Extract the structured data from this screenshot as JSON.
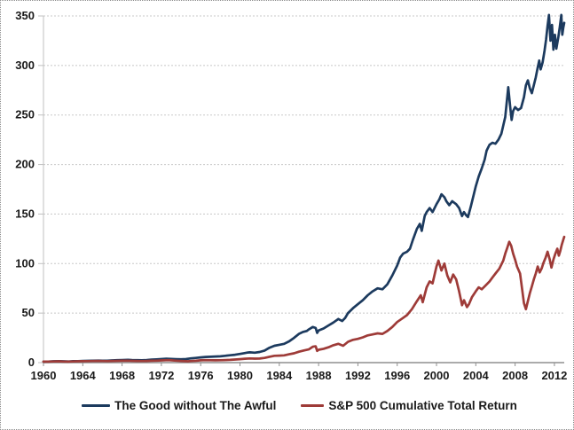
{
  "chart_data": {
    "type": "line",
    "title": "",
    "grid": true,
    "legend_position": "bottom",
    "x_axis": {
      "min": 1960,
      "max": 2013,
      "tick_labels": [
        "1960",
        "1964",
        "1968",
        "1972",
        "1976",
        "1980",
        "1984",
        "1988",
        "1992",
        "1996",
        "2000",
        "2004",
        "2008",
        "2012"
      ]
    },
    "y_axis": {
      "min": 0,
      "max": 350,
      "tick_labels": [
        "0",
        "50",
        "100",
        "150",
        "200",
        "250",
        "300",
        "350"
      ]
    },
    "colors": {
      "grid": "#c8c8c8",
      "axis": "#8f8f8f",
      "y_axis_line": "#c0c0c0",
      "tick_text": "#1a1a1a"
    },
    "series": [
      {
        "name": "The Good without The Awful",
        "color": "#1c3a5e",
        "points": [
          [
            1960,
            1
          ],
          [
            1960.5,
            1.1
          ],
          [
            1961,
            1.3
          ],
          [
            1961.6,
            1.4
          ],
          [
            1962,
            1.3
          ],
          [
            1962.6,
            1.2
          ],
          [
            1963,
            1.4
          ],
          [
            1963.5,
            1.5
          ],
          [
            1964,
            1.7
          ],
          [
            1964.5,
            1.8
          ],
          [
            1965,
            2
          ],
          [
            1965.6,
            2.1
          ],
          [
            1966,
            2
          ],
          [
            1966.5,
            1.9
          ],
          [
            1967,
            2.2
          ],
          [
            1967.5,
            2.5
          ],
          [
            1968,
            2.6
          ],
          [
            1968.6,
            2.8
          ],
          [
            1969,
            2.6
          ],
          [
            1969.6,
            2.5
          ],
          [
            1970,
            2.4
          ],
          [
            1970.5,
            2.6
          ],
          [
            1971,
            3
          ],
          [
            1971.5,
            3.3
          ],
          [
            1972,
            3.6
          ],
          [
            1972.5,
            3.9
          ],
          [
            1973,
            3.7
          ],
          [
            1973.5,
            3.5
          ],
          [
            1974,
            3.4
          ],
          [
            1974.5,
            3.6
          ],
          [
            1975,
            4.3
          ],
          [
            1975.5,
            4.7
          ],
          [
            1976,
            5.3
          ],
          [
            1976.5,
            5.7
          ],
          [
            1977,
            5.9
          ],
          [
            1977.5,
            6.2
          ],
          [
            1978,
            6.4
          ],
          [
            1978.5,
            6.9
          ],
          [
            1979,
            7.4
          ],
          [
            1979.5,
            8
          ],
          [
            1980,
            8.8
          ],
          [
            1980.4,
            9.5
          ],
          [
            1980.8,
            10.2
          ],
          [
            1981,
            10.4
          ],
          [
            1981.5,
            10
          ],
          [
            1982,
            10.7
          ],
          [
            1982.5,
            12.2
          ],
          [
            1983,
            15
          ],
          [
            1983.5,
            17
          ],
          [
            1984,
            18
          ],
          [
            1984.5,
            19
          ],
          [
            1985,
            21.5
          ],
          [
            1985.5,
            25
          ],
          [
            1986,
            29
          ],
          [
            1986.4,
            31
          ],
          [
            1986.8,
            32
          ],
          [
            1987,
            33.5
          ],
          [
            1987.4,
            36
          ],
          [
            1987.7,
            35
          ],
          [
            1987.85,
            30
          ],
          [
            1988,
            32.5
          ],
          [
            1988.5,
            34.5
          ],
          [
            1989,
            37.5
          ],
          [
            1989.5,
            40.5
          ],
          [
            1990,
            44
          ],
          [
            1990.4,
            42
          ],
          [
            1990.7,
            45
          ],
          [
            1991,
            50
          ],
          [
            1991.5,
            55
          ],
          [
            1992,
            59
          ],
          [
            1992.5,
            63
          ],
          [
            1993,
            68
          ],
          [
            1993.5,
            72
          ],
          [
            1994,
            75
          ],
          [
            1994.5,
            74
          ],
          [
            1995,
            79
          ],
          [
            1995.5,
            88
          ],
          [
            1996,
            98
          ],
          [
            1996.3,
            106
          ],
          [
            1996.6,
            110
          ],
          [
            1997,
            112
          ],
          [
            1997.3,
            115
          ],
          [
            1997.6,
            124
          ],
          [
            1998,
            135
          ],
          [
            1998.3,
            140
          ],
          [
            1998.5,
            133
          ],
          [
            1998.8,
            148
          ],
          [
            1999,
            152
          ],
          [
            1999.3,
            156
          ],
          [
            1999.6,
            152
          ],
          [
            2000,
            160
          ],
          [
            2000.3,
            165
          ],
          [
            2000.5,
            170
          ],
          [
            2000.8,
            167
          ],
          [
            2001,
            163
          ],
          [
            2001.3,
            159
          ],
          [
            2001.6,
            163
          ],
          [
            2002,
            160
          ],
          [
            2002.3,
            156
          ],
          [
            2002.6,
            148
          ],
          [
            2002.8,
            152
          ],
          [
            2003,
            149
          ],
          [
            2003.2,
            147
          ],
          [
            2003.5,
            158
          ],
          [
            2003.8,
            170
          ],
          [
            2004,
            178
          ],
          [
            2004.3,
            188
          ],
          [
            2004.6,
            196
          ],
          [
            2004.9,
            205
          ],
          [
            2005.1,
            214
          ],
          [
            2005.4,
            220
          ],
          [
            2005.7,
            222
          ],
          [
            2006,
            221
          ],
          [
            2006.3,
            225
          ],
          [
            2006.6,
            231
          ],
          [
            2007,
            248
          ],
          [
            2007.3,
            278
          ],
          [
            2007.5,
            258
          ],
          [
            2007.65,
            245
          ],
          [
            2007.8,
            254
          ],
          [
            2008,
            258
          ],
          [
            2008.3,
            255
          ],
          [
            2008.6,
            257
          ],
          [
            2008.9,
            268
          ],
          [
            2009.1,
            280
          ],
          [
            2009.3,
            285
          ],
          [
            2009.5,
            277
          ],
          [
            2009.7,
            272
          ],
          [
            2009.9,
            280
          ],
          [
            2010.1,
            288
          ],
          [
            2010.3,
            298
          ],
          [
            2010.45,
            305
          ],
          [
            2010.6,
            296
          ],
          [
            2010.8,
            303
          ],
          [
            2011,
            315
          ],
          [
            2011.15,
            326
          ],
          [
            2011.3,
            340
          ],
          [
            2011.45,
            351
          ],
          [
            2011.6,
            325
          ],
          [
            2011.75,
            341
          ],
          [
            2011.9,
            316
          ],
          [
            2012.05,
            331
          ],
          [
            2012.2,
            317
          ],
          [
            2012.4,
            329
          ],
          [
            2012.55,
            339
          ],
          [
            2012.7,
            351
          ],
          [
            2012.8,
            331
          ],
          [
            2012.9,
            338
          ],
          [
            2013,
            343
          ]
        ]
      },
      {
        "name": "S&P 500 Cumulative Total Return",
        "color": "#9e3b38",
        "points": [
          [
            1960,
            1
          ],
          [
            1960.5,
            1
          ],
          [
            1961,
            1.2
          ],
          [
            1961.6,
            1.3
          ],
          [
            1962,
            1.1
          ],
          [
            1962.5,
            1
          ],
          [
            1963,
            1.2
          ],
          [
            1963.5,
            1.3
          ],
          [
            1964,
            1.4
          ],
          [
            1964.5,
            1.5
          ],
          [
            1965,
            1.6
          ],
          [
            1965.5,
            1.7
          ],
          [
            1966,
            1.6
          ],
          [
            1966.5,
            1.5
          ],
          [
            1967,
            1.7
          ],
          [
            1967.5,
            1.8
          ],
          [
            1968,
            1.9
          ],
          [
            1968.5,
            2
          ],
          [
            1969,
            1.8
          ],
          [
            1969.5,
            1.7
          ],
          [
            1970,
            1.6
          ],
          [
            1970.5,
            1.7
          ],
          [
            1971,
            1.9
          ],
          [
            1971.5,
            2
          ],
          [
            1972,
            2.2
          ],
          [
            1972.7,
            2.5
          ],
          [
            1973,
            2.3
          ],
          [
            1973.5,
            2
          ],
          [
            1974,
            1.7
          ],
          [
            1974.7,
            1.3
          ],
          [
            1975,
            1.6
          ],
          [
            1975.5,
            1.9
          ],
          [
            1976,
            2.3
          ],
          [
            1976.5,
            2.5
          ],
          [
            1977,
            2.4
          ],
          [
            1977.5,
            2.3
          ],
          [
            1978,
            2.4
          ],
          [
            1978.5,
            2.6
          ],
          [
            1979,
            2.8
          ],
          [
            1979.5,
            3.1
          ],
          [
            1980,
            3.5
          ],
          [
            1980.5,
            3.9
          ],
          [
            1981,
            4.2
          ],
          [
            1981.5,
            4
          ],
          [
            1982,
            4.1
          ],
          [
            1982.5,
            4.7
          ],
          [
            1983,
            5.9
          ],
          [
            1983.5,
            6.9
          ],
          [
            1984,
            7.1
          ],
          [
            1984.5,
            7.3
          ],
          [
            1985,
            8.4
          ],
          [
            1985.5,
            9.4
          ],
          [
            1986,
            11
          ],
          [
            1986.5,
            12.3
          ],
          [
            1987,
            13.3
          ],
          [
            1987.4,
            16
          ],
          [
            1987.7,
            16.5
          ],
          [
            1987.85,
            11.8
          ],
          [
            1988,
            13
          ],
          [
            1988.5,
            14
          ],
          [
            1989,
            15.5
          ],
          [
            1989.5,
            17.5
          ],
          [
            1990,
            19
          ],
          [
            1990.5,
            17
          ],
          [
            1991,
            21
          ],
          [
            1991.5,
            23
          ],
          [
            1992,
            24
          ],
          [
            1992.5,
            25.5
          ],
          [
            1993,
            27.5
          ],
          [
            1993.5,
            28.5
          ],
          [
            1994,
            29.5
          ],
          [
            1994.5,
            29
          ],
          [
            1995,
            32
          ],
          [
            1995.5,
            36
          ],
          [
            1996,
            41
          ],
          [
            1996.5,
            44.5
          ],
          [
            1997,
            48
          ],
          [
            1997.5,
            54
          ],
          [
            1998,
            62
          ],
          [
            1998.4,
            68
          ],
          [
            1998.6,
            61
          ],
          [
            1999,
            76
          ],
          [
            1999.3,
            82
          ],
          [
            1999.6,
            80
          ],
          [
            2000,
            97
          ],
          [
            2000.2,
            103
          ],
          [
            2000.5,
            93
          ],
          [
            2000.8,
            100
          ],
          [
            2001.1,
            88
          ],
          [
            2001.4,
            81
          ],
          [
            2001.7,
            89
          ],
          [
            2002,
            84
          ],
          [
            2002.3,
            72
          ],
          [
            2002.6,
            58
          ],
          [
            2002.8,
            63
          ],
          [
            2003.1,
            56
          ],
          [
            2003.3,
            59
          ],
          [
            2003.6,
            66
          ],
          [
            2004,
            72
          ],
          [
            2004.3,
            76
          ],
          [
            2004.6,
            74
          ],
          [
            2005,
            78
          ],
          [
            2005.4,
            82
          ],
          [
            2005.7,
            86
          ],
          [
            2006,
            90
          ],
          [
            2006.4,
            95
          ],
          [
            2006.8,
            103
          ],
          [
            2007,
            110
          ],
          [
            2007.2,
            116
          ],
          [
            2007.4,
            122
          ],
          [
            2007.6,
            118
          ],
          [
            2007.8,
            110
          ],
          [
            2008,
            104
          ],
          [
            2008.2,
            97
          ],
          [
            2008.5,
            90
          ],
          [
            2008.7,
            75
          ],
          [
            2008.9,
            60
          ],
          [
            2009.1,
            54
          ],
          [
            2009.3,
            62
          ],
          [
            2009.5,
            70
          ],
          [
            2009.7,
            77
          ],
          [
            2009.9,
            84
          ],
          [
            2010.1,
            90
          ],
          [
            2010.3,
            97
          ],
          [
            2010.5,
            91
          ],
          [
            2010.7,
            95
          ],
          [
            2010.9,
            101
          ],
          [
            2011.1,
            106
          ],
          [
            2011.3,
            112
          ],
          [
            2011.5,
            105
          ],
          [
            2011.7,
            96
          ],
          [
            2011.9,
            104
          ],
          [
            2012.1,
            110
          ],
          [
            2012.3,
            115
          ],
          [
            2012.45,
            108
          ],
          [
            2012.6,
            113
          ],
          [
            2012.75,
            119
          ],
          [
            2012.9,
            124
          ],
          [
            2013,
            127
          ]
        ]
      }
    ]
  }
}
